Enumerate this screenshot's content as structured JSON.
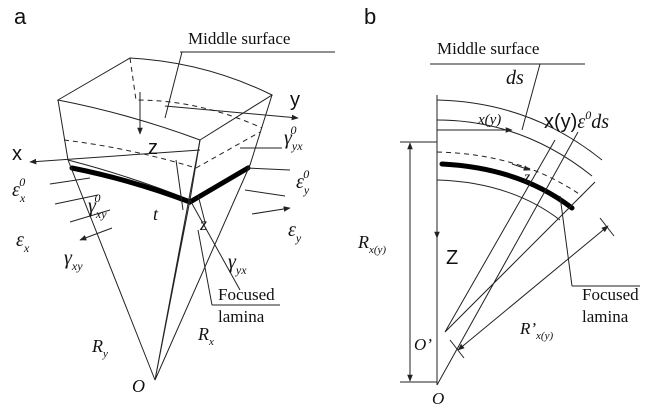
{
  "panel_a": {
    "label": "a",
    "middle_surface": "Middle surface",
    "axis_y": "y",
    "axis_x": "x",
    "axis_z": "z",
    "gamma_yx0": {
      "base": "γ",
      "sub": "yx",
      "sup": "0"
    },
    "eps_y0": {
      "base": "ε",
      "sub": "y",
      "sup": "0"
    },
    "eps_x0": {
      "base": "ε",
      "sub": "x",
      "sup": "0"
    },
    "gamma_xy0": {
      "base": "γ",
      "sub": "xy",
      "sup": "0"
    },
    "t": "t",
    "z": "z",
    "eps_y": {
      "base": "ε",
      "sub": "y"
    },
    "eps_x": {
      "base": "ε",
      "sub": "x"
    },
    "gamma_xy": {
      "base": "γ",
      "sub": "xy"
    },
    "gamma_yx": {
      "base": "γ",
      "sub": "yx"
    },
    "focused_lamina": [
      "Focused",
      "lamina"
    ],
    "R_y": {
      "base": "R",
      "sub": "y"
    },
    "R_x": {
      "base": "R",
      "sub": "x"
    },
    "origin": "O"
  },
  "panel_b": {
    "label": "b",
    "middle_surface": "Middle surface",
    "ds": "ds",
    "x_y_arrow": "x(y)",
    "strain_label": {
      "base": "x(y)",
      "eps": "ε",
      "sup": "0",
      "rest": "ds"
    },
    "z_small": "z",
    "axis_z": "Z",
    "R_xy": {
      "base": "R",
      "sub": "x(y)"
    },
    "origin_prime": "O’",
    "origin": "O",
    "R_prime_xy": {
      "base": "R’",
      "sub": "x(y)"
    },
    "focused_lamina": [
      "Focused",
      "lamina"
    ]
  }
}
